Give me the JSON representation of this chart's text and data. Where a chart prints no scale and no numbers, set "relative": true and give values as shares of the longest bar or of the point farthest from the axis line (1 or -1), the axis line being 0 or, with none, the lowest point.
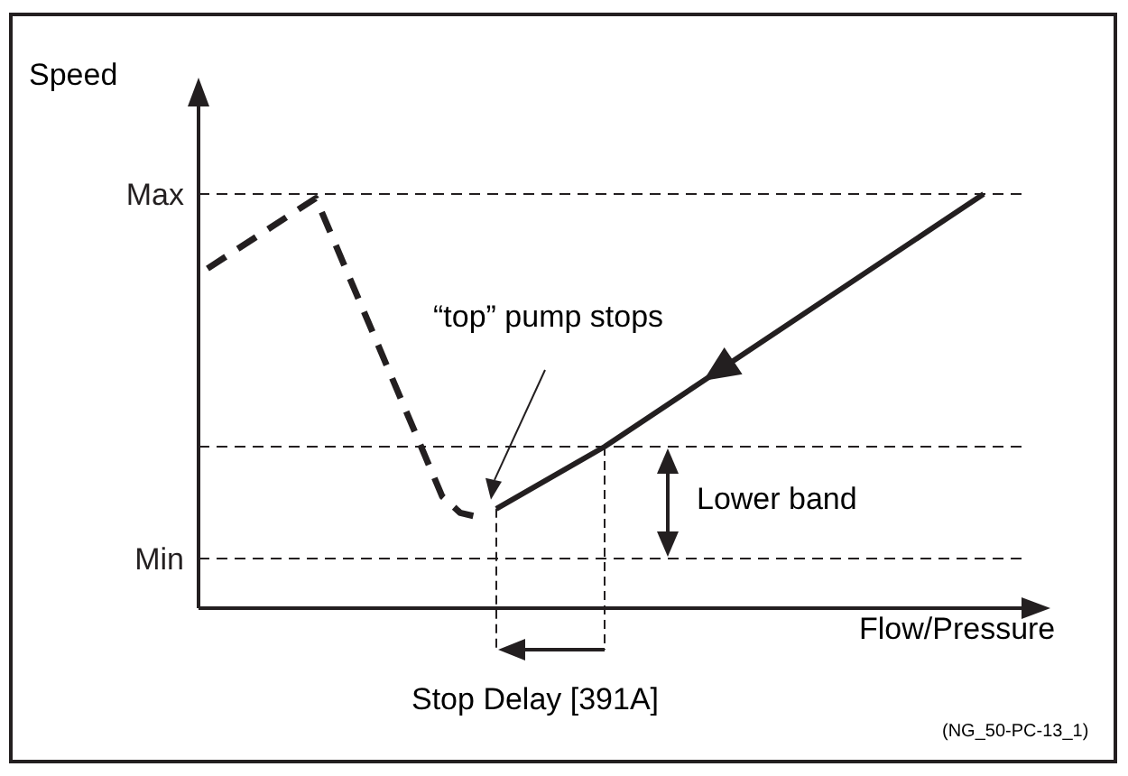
{
  "chart_data": {
    "type": "line",
    "xlabel": "Flow/Pressure",
    "ylabel": "Speed",
    "categories": [
      null,
      null,
      null,
      null,
      null,
      null,
      null,
      null,
      null,
      null,
      null,
      null,
      null,
      null,
      null,
      null,
      null,
      null,
      null,
      null,
      null,
      null,
      null,
      null,
      null,
      null,
      null,
      null,
      null,
      null,
      null,
      null,
      null,
      null,
      null,
      null,
      null,
      null,
      null,
      null,
      null,
      null,
      null,
      null,
      null
    ],
    "series": [
      {
        "color": "#231f20",
        "line_style": "dashed",
        "values": [
          0.82,
          null,
          null,
          null,
          null,
          null,
          0.99,
          null,
          null,
          null,
          null,
          null,
          null,
          0.27,
          0.23,
          0.22,
          null,
          null,
          null,
          null,
          null,
          null,
          null,
          null,
          null,
          null,
          null,
          null,
          null,
          null,
          null,
          null,
          null,
          null,
          null,
          null,
          null,
          null,
          null,
          null,
          null,
          null,
          null,
          null,
          null
        ]
      },
      {
        "color": "#231f20",
        "line_style": "solid",
        "values": [
          null,
          null,
          null,
          null,
          null,
          null,
          null,
          null,
          null,
          null,
          null,
          null,
          null,
          null,
          null,
          null,
          0.24,
          null,
          null,
          null,
          null,
          null,
          0.39,
          null,
          null,
          null,
          null,
          null,
          null,
          null,
          null,
          null,
          null,
          null,
          null,
          null,
          null,
          null,
          null,
          null,
          null,
          null,
          null,
          1,
          null
        ]
      }
    ],
    "relative": true,
    "ref_lines": [
      {
        "axis": "y",
        "value": 1,
        "label": "Max",
        "line_style": "dashed",
        "color": "#231f20"
      },
      {
        "axis": "y",
        "value": 0.39,
        "label": null,
        "line_style": "dashed",
        "color": "#231f20"
      },
      {
        "axis": "y",
        "value": 0.12,
        "label": "Min",
        "line_style": "dashed",
        "color": "#231f20"
      }
    ],
    "annotations": [
      "“top” pump stops",
      "Lower band",
      "Stop Delay [391A]",
      "(NG_50-PC-13_1)"
    ]
  }
}
